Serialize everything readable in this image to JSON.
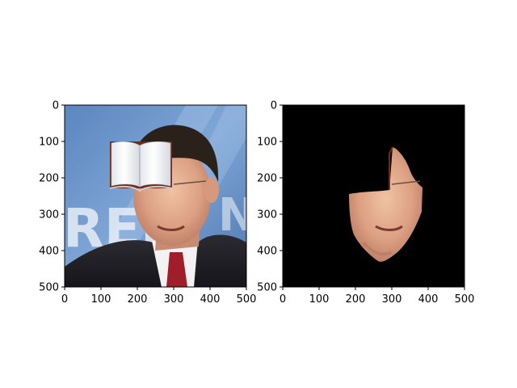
{
  "chart_data": [
    {
      "type": "image",
      "title": "",
      "xlabel": "",
      "ylabel": "",
      "xlim": [
        0,
        500
      ],
      "ylim": [
        500,
        0
      ],
      "x_ticks": [
        "0",
        "100",
        "200",
        "300",
        "400",
        "500"
      ],
      "y_ticks": [
        "0",
        "100",
        "200",
        "300",
        "400",
        "500"
      ],
      "content": "photo-with-book-occluder",
      "grid": false
    },
    {
      "type": "image",
      "title": "",
      "xlabel": "",
      "ylabel": "",
      "xlim": [
        0,
        500
      ],
      "ylim": [
        500,
        0
      ],
      "x_ticks": [
        "0",
        "100",
        "200",
        "300",
        "400",
        "500"
      ],
      "y_ticks": [
        "0",
        "100",
        "200",
        "300",
        "400",
        "500"
      ],
      "content": "masked-face-on-black",
      "grid": false
    }
  ]
}
